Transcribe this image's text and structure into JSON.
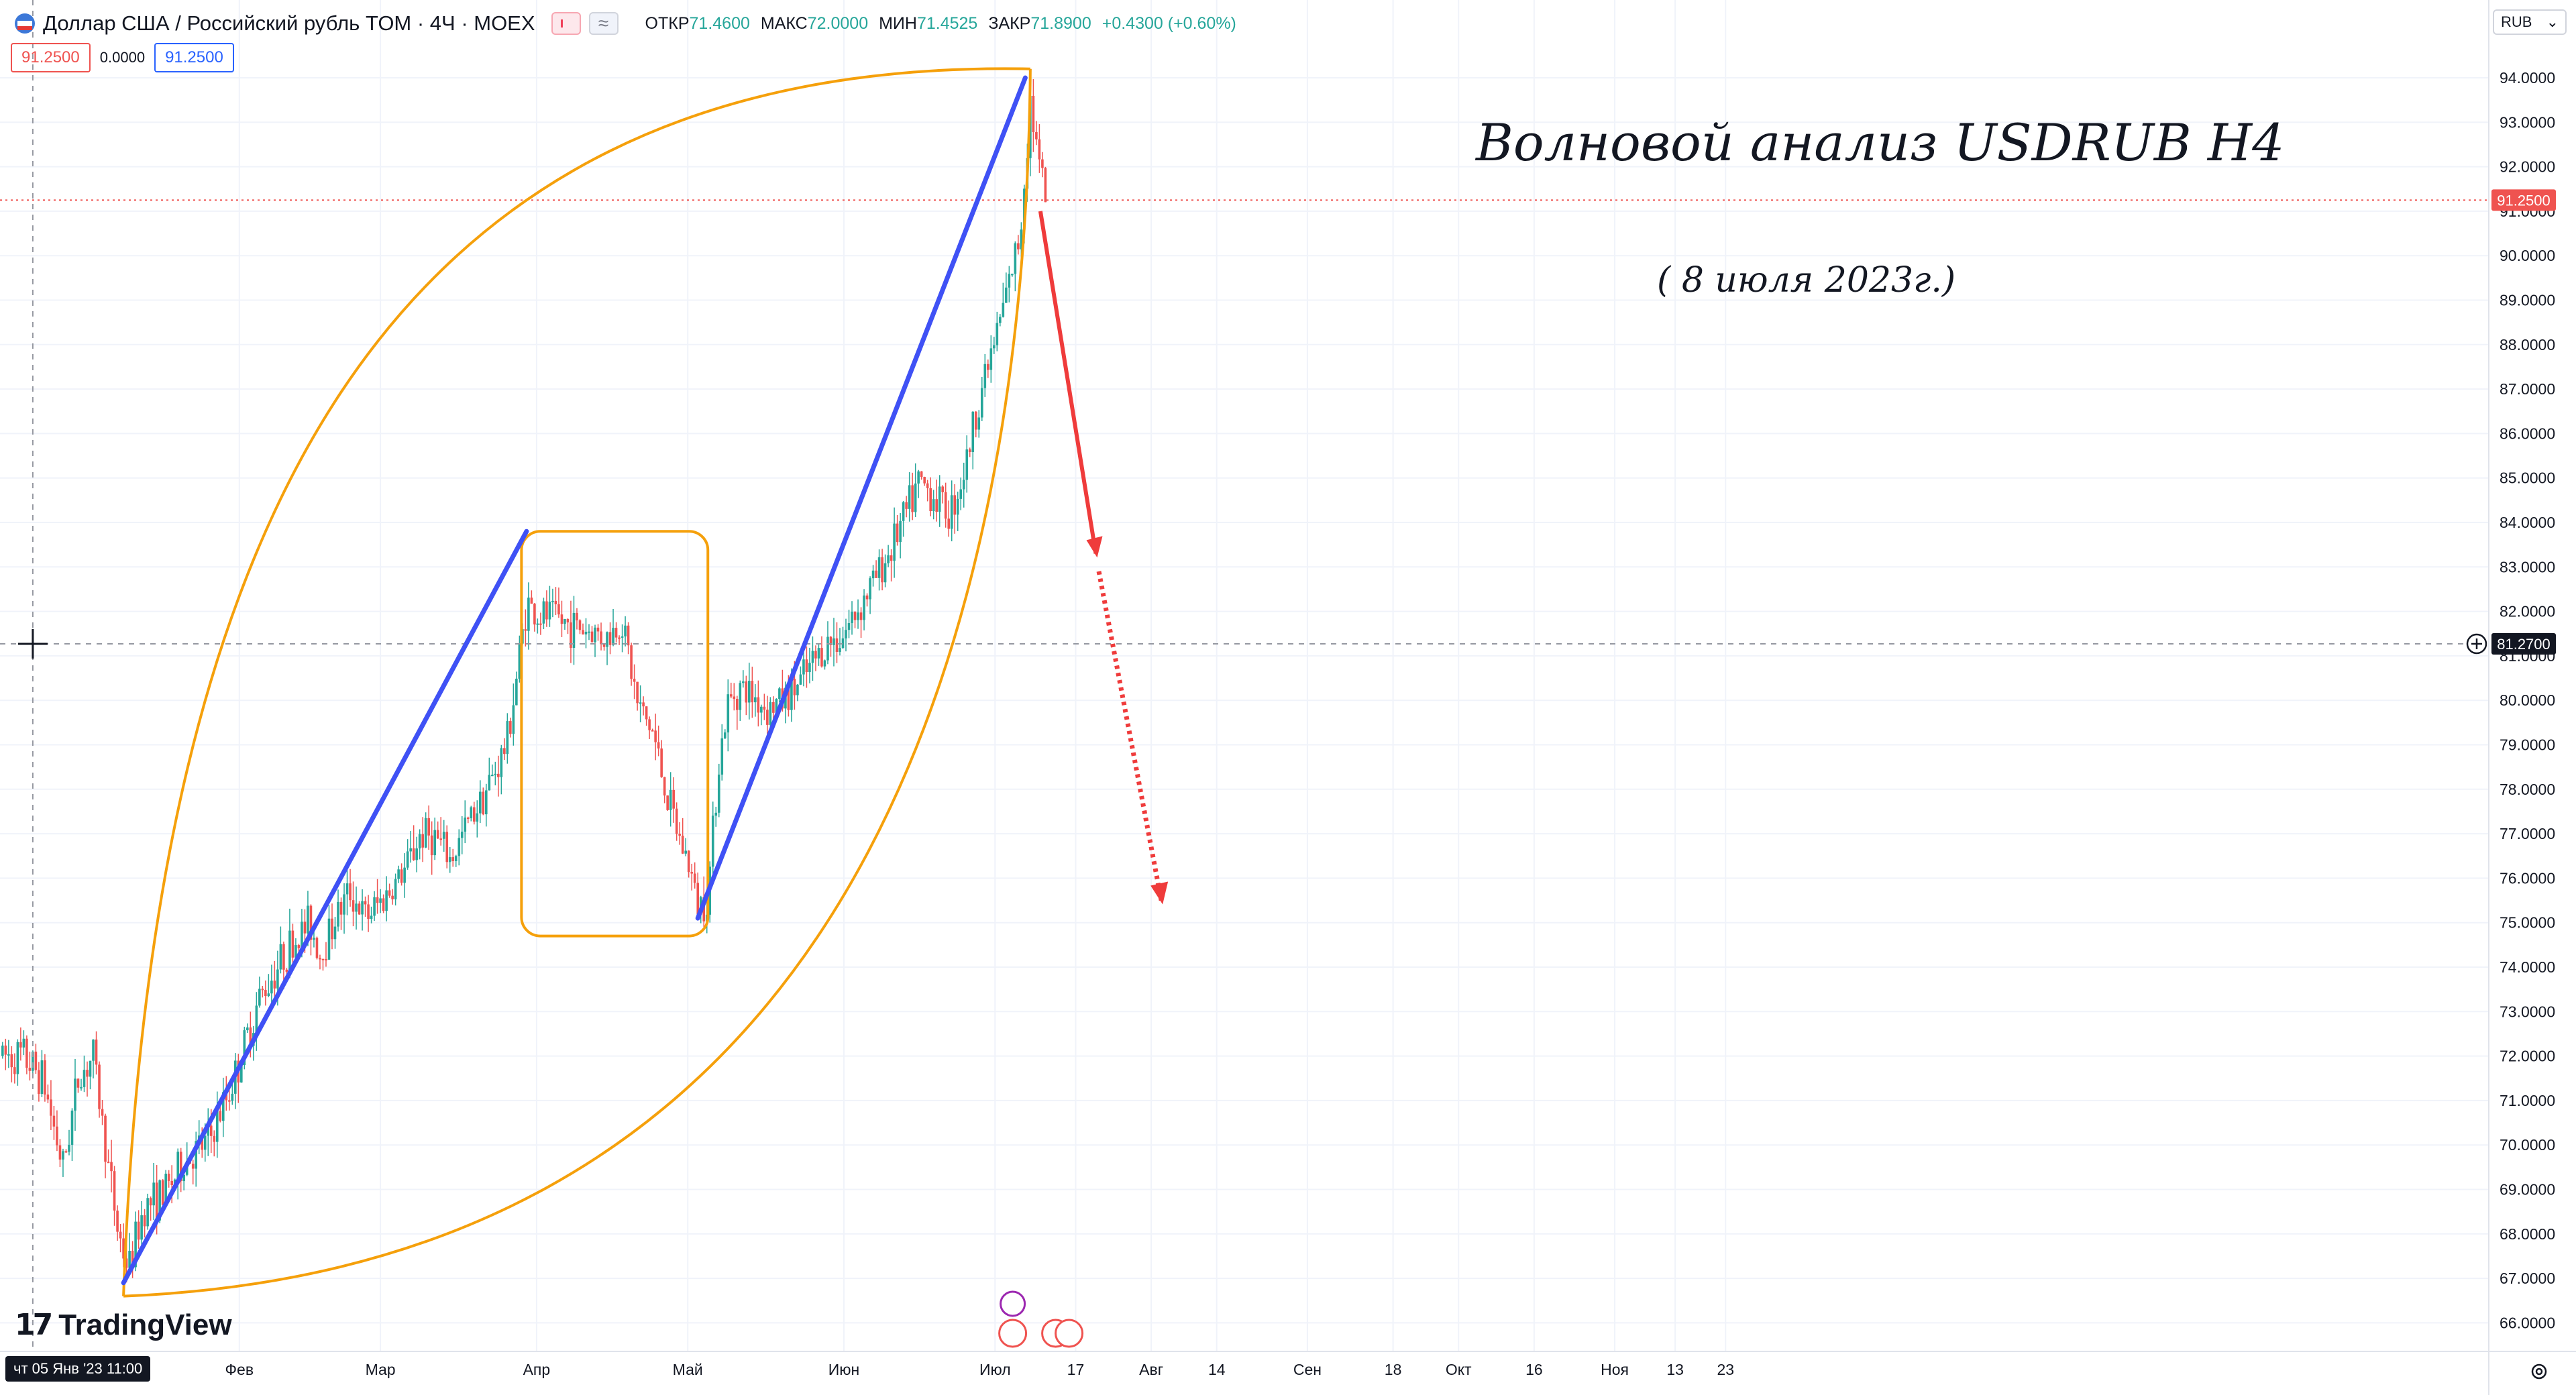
{
  "header": {
    "symbol_title": "Доллар США / Российский рубль TOM · 4Ч · MOEX",
    "ohlc": [
      {
        "label": "ОТКР",
        "value": "71.4600"
      },
      {
        "label": "МАКС",
        "value": "72.0000"
      },
      {
        "label": "МИН",
        "value": "71.4525"
      },
      {
        "label": "ЗАКР",
        "value": "71.8900"
      },
      {
        "label": "",
        "value": "+0.4300 (+0.60%)"
      }
    ]
  },
  "order_inputs": {
    "bid": "91.2500",
    "spread": "0.0000",
    "ask": "91.2500"
  },
  "annotations": {
    "title": "Волновой анализ USDRUB H4",
    "date": "( 8 июля 2023г.)"
  },
  "price_scale": {
    "currency": "RUB"
  },
  "crosshair": {
    "price_label": "81.2700",
    "time_label": "чт 05 Янв '23   11:00"
  },
  "branding": {
    "logo_text": "TradingView"
  },
  "colors": {
    "up": "#26a69a",
    "down": "#ef5350",
    "wave": "#3f51f5",
    "arc": "#f5a00b",
    "projection": "#ef3b3b",
    "grid": "#f0f3fa"
  },
  "chart_data": {
    "type": "candlestick",
    "symbol": "USDRUB_TOM",
    "timeframe": "4Ч",
    "ylim": [
      65.5,
      94.5
    ],
    "y_ticks": [
      66,
      67,
      68,
      69,
      70,
      71,
      72,
      73,
      74,
      75,
      76,
      77,
      78,
      79,
      80,
      81,
      82,
      83,
      84,
      85,
      86,
      87,
      88,
      89,
      90,
      91,
      92,
      93,
      94
    ],
    "x_tick_labels": [
      {
        "label": "Фев",
        "day": 31
      },
      {
        "label": "Мар",
        "day": 59
      },
      {
        "label": "Апр",
        "day": 90
      },
      {
        "label": "Май",
        "day": 120
      },
      {
        "label": "Июн",
        "day": 151
      },
      {
        "label": "Июл",
        "day": 181
      },
      {
        "label": "17",
        "day": 197
      },
      {
        "label": "Авг",
        "day": 212
      },
      {
        "label": "14",
        "day": 225
      },
      {
        "label": "Сен",
        "day": 243
      },
      {
        "label": "18",
        "day": 260
      },
      {
        "label": "Окт",
        "day": 273
      },
      {
        "label": "16",
        "day": 288
      },
      {
        "label": "Ноя",
        "day": 304
      },
      {
        "label": "13",
        "day": 316
      },
      {
        "label": "23",
        "day": 326
      }
    ],
    "last_price": 91.25,
    "trend": [
      [
        -12,
        72.0
      ],
      [
        -8,
        71.5
      ],
      [
        -4,
        69.5
      ],
      [
        -1,
        71.5
      ],
      [
        2,
        72.0
      ],
      [
        5,
        69.5
      ],
      [
        7,
        68.0
      ],
      [
        9,
        67.2
      ],
      [
        12,
        68.6
      ],
      [
        16,
        68.9
      ],
      [
        20,
        69.6
      ],
      [
        25,
        70.1
      ],
      [
        30,
        71.5
      ],
      [
        35,
        73.3
      ],
      [
        40,
        74.3
      ],
      [
        45,
        75.0
      ],
      [
        47,
        74.3
      ],
      [
        50,
        75.1
      ],
      [
        53,
        75.7
      ],
      [
        56,
        75.1
      ],
      [
        60,
        75.6
      ],
      [
        64,
        76.2
      ],
      [
        67,
        77.0
      ],
      [
        70,
        76.9
      ],
      [
        73,
        76.4
      ],
      [
        77,
        77.4
      ],
      [
        81,
        78.2
      ],
      [
        84,
        79.0
      ],
      [
        86,
        80.5
      ],
      [
        88,
        82.2
      ],
      [
        90,
        81.9
      ],
      [
        93,
        81.9
      ],
      [
        96,
        81.7
      ],
      [
        100,
        81.6
      ],
      [
        104,
        81.4
      ],
      [
        107,
        81.8
      ],
      [
        110,
        79.9
      ],
      [
        113,
        79.3
      ],
      [
        116,
        77.8
      ],
      [
        118,
        77.0
      ],
      [
        120,
        76.4
      ],
      [
        122,
        75.4
      ],
      [
        124,
        75.6
      ],
      [
        126,
        78.5
      ],
      [
        128,
        79.9
      ],
      [
        130,
        80.3
      ],
      [
        133,
        80.1
      ],
      [
        136,
        79.8
      ],
      [
        140,
        80.1
      ],
      [
        143,
        80.5
      ],
      [
        147,
        81.2
      ],
      [
        151,
        81.5
      ],
      [
        155,
        82.3
      ],
      [
        159,
        83.1
      ],
      [
        163,
        84.1
      ],
      [
        166,
        84.9
      ],
      [
        169,
        84.6
      ],
      [
        172,
        84.2
      ],
      [
        175,
        85.2
      ],
      [
        178,
        86.9
      ],
      [
        181,
        88.1
      ],
      [
        184,
        89.5
      ],
      [
        186,
        90.5
      ],
      [
        188,
        93.5
      ],
      [
        190,
        91.8
      ],
      [
        191,
        91.25
      ]
    ],
    "wave_lines": [
      {
        "from": [
          8,
          66.9
        ],
        "to": [
          88,
          83.8
        ]
      },
      {
        "from": [
          122,
          75.1
        ],
        "to": [
          187,
          94.0
        ]
      }
    ],
    "consolidation_box": {
      "x": [
        87,
        124
      ],
      "y": [
        74.7,
        83.8
      ]
    },
    "arc_points": [
      [
        8,
        66.6
      ],
      [
        188,
        94.2
      ]
    ],
    "projection": {
      "from": [
        190,
        91.0
      ],
      "arrow_to": [
        201,
        83.3
      ],
      "dotted_to": [
        214,
        75.5
      ]
    }
  }
}
